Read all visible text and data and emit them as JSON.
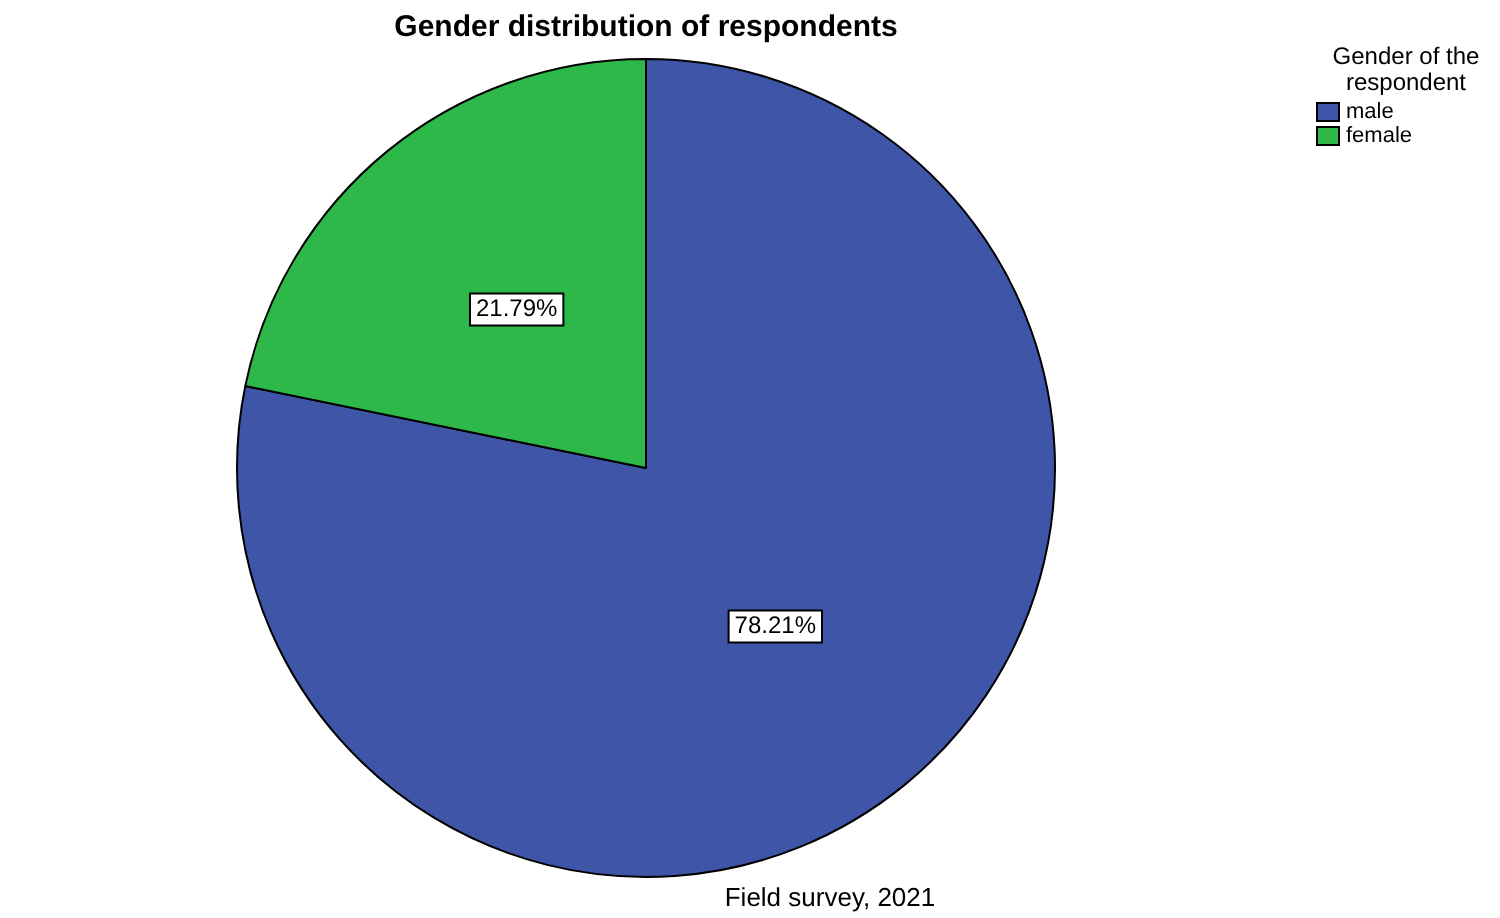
{
  "chart_data": {
    "type": "pie",
    "title": "Gender distribution of respondents",
    "legend_title": "Gender of the respondent",
    "categories": [
      "male",
      "female"
    ],
    "values": [
      78.21,
      21.79
    ],
    "colors": [
      "#3f56a8",
      "#2eb84a"
    ],
    "value_labels": [
      "78.21%",
      "21.79%"
    ],
    "legend": "top right",
    "annotations": [
      "Field survey, 2021"
    ]
  }
}
